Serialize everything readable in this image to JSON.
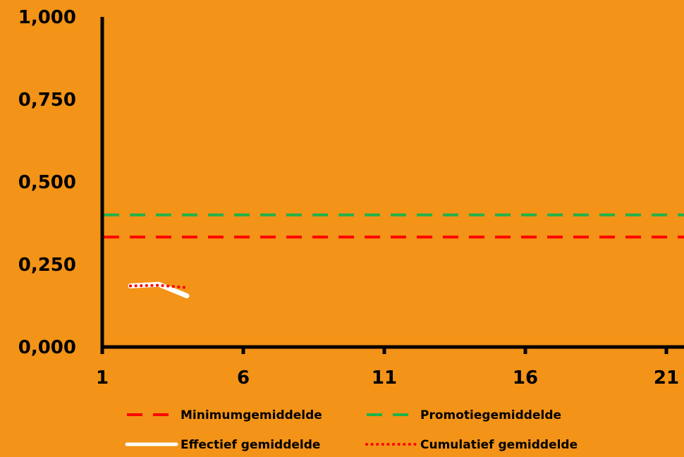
{
  "chart_data": {
    "type": "line",
    "xlim": [
      1,
      21
    ],
    "ylim": [
      0,
      1
    ],
    "x_ticks": [
      "1",
      "6",
      "11",
      "16",
      "21"
    ],
    "y_ticks": [
      "0,000",
      "0,250",
      "0,500",
      "0,750",
      "1,000"
    ],
    "grid": false,
    "legend_position": "bottom",
    "series": [
      {
        "name": "Minimumgemiddelde",
        "style": "dashed",
        "color": "#ff0000",
        "x": [
          1,
          21
        ],
        "y": [
          0.333,
          0.333
        ]
      },
      {
        "name": "Promotiegemiddelde",
        "style": "dashed",
        "color": "#1fb24a",
        "x": [
          1,
          21
        ],
        "y": [
          0.4,
          0.4
        ]
      },
      {
        "name": "Effectief gemiddelde",
        "style": "solid",
        "color": "#ffffff",
        "x": [
          2,
          3,
          4
        ],
        "y": [
          0.185,
          0.19,
          0.155
        ]
      },
      {
        "name": "Cumulatief gemiddelde",
        "style": "dotted",
        "color": "#ff0000",
        "x": [
          2,
          3,
          4
        ],
        "y": [
          0.185,
          0.187,
          0.18
        ]
      }
    ]
  }
}
